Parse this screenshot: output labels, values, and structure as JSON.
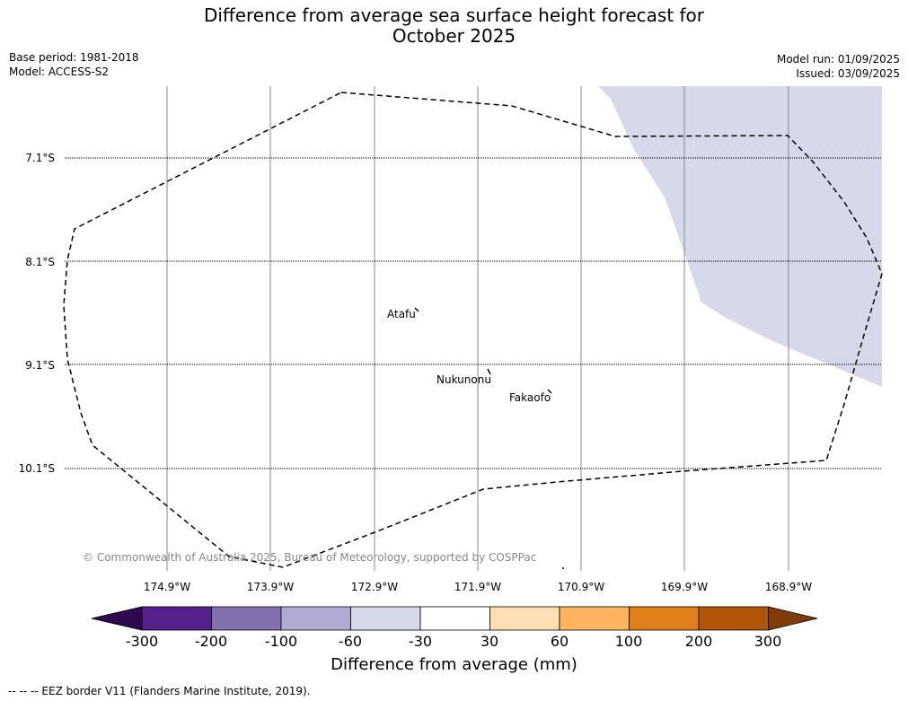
{
  "header": {
    "title_line1": "Difference from average sea surface height forecast for",
    "title_line2": "October 2025",
    "base_period": "Base period: 1981-2018",
    "model": "Model: ACCESS-S2",
    "model_run": "Model run: 01/09/2025",
    "issued": "Issued: 03/09/2025"
  },
  "map": {
    "latitude_labels": [
      "7.1°S",
      "8.1°S",
      "9.1°S",
      "10.1°S"
    ],
    "longitude_labels": [
      "174.9°W",
      "173.9°W",
      "172.9°W",
      "171.9°W",
      "170.9°W",
      "169.9°W",
      "168.9°W"
    ],
    "places": [
      {
        "name": "Atafu"
      },
      {
        "name": "Nukunonu"
      },
      {
        "name": "Fakaofo"
      }
    ],
    "anomaly_region_category": "-60 to -30",
    "copyright": "© Commonwealth of Australia 2025, Bureau of Meteorology, supported by COSPPac"
  },
  "colorbar": {
    "title": "Difference from average (mm)",
    "ticks": [
      "-300",
      "-200",
      "-100",
      "-60",
      "-30",
      "30",
      "60",
      "100",
      "200",
      "300"
    ],
    "colors": [
      "#2d0a4e",
      "#54218a",
      "#8171ad",
      "#b1aad4",
      "#d8d8eb",
      "#ffffff",
      "#fedeb3",
      "#fcb55d",
      "#e1801b",
      "#b15608",
      "#7f3b08"
    ]
  },
  "footnote": "--  --  -- EEZ border V11 (Flanders Marine Institute, 2019)."
}
